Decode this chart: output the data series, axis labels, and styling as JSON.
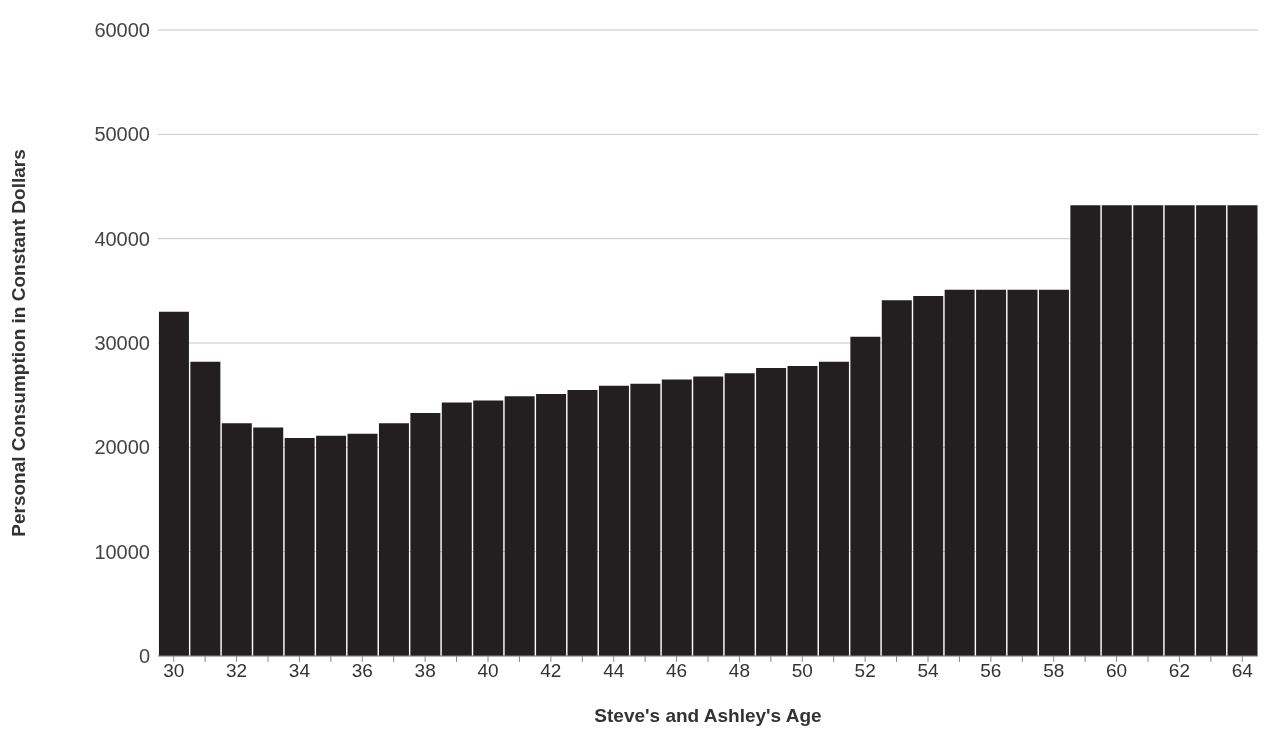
{
  "chart_data": {
    "type": "bar",
    "xlabel": "Steve's and Ashley's Age",
    "ylabel": "Personal Consumption in Constant Dollars",
    "categories": [
      "30",
      null,
      "32",
      null,
      "34",
      null,
      "36",
      null,
      "38",
      null,
      "40",
      null,
      "42",
      null,
      "44",
      null,
      "46",
      null,
      "48",
      null,
      "50",
      null,
      "52",
      null,
      "54",
      null,
      "56",
      null,
      "58",
      null,
      "60",
      null,
      "62",
      null,
      "64"
    ],
    "values": [
      33000,
      28200,
      22300,
      21900,
      20900,
      21100,
      21300,
      22300,
      23300,
      24300,
      24500,
      24900,
      25100,
      25500,
      25900,
      26100,
      26500,
      26800,
      27100,
      27600,
      27800,
      28200,
      30600,
      34100,
      34500,
      35100,
      35100,
      35100,
      35100,
      43200,
      43200,
      43200,
      43200,
      43200,
      43200
    ],
    "color": "#231f20",
    "ylim": [
      0,
      60000
    ],
    "yticks": [
      0,
      10000,
      20000,
      30000,
      40000,
      50000,
      60000
    ],
    "grid": "y"
  }
}
